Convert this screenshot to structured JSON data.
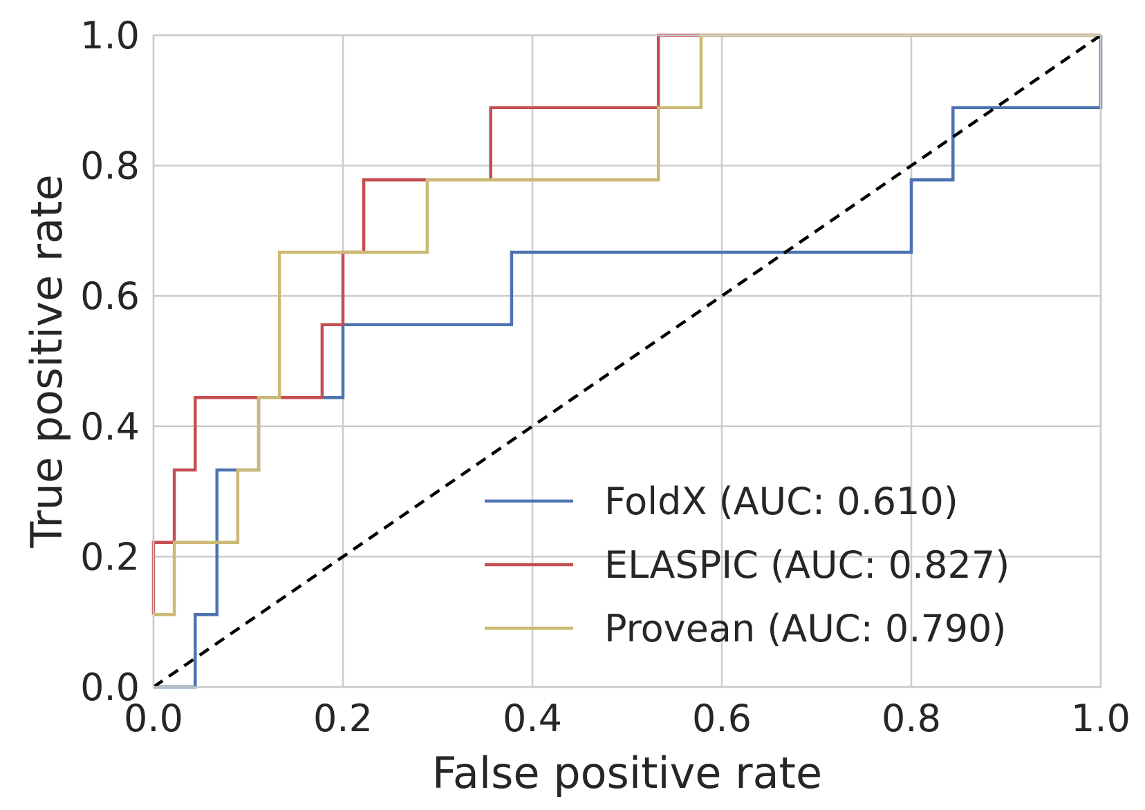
{
  "chart_data": {
    "type": "line",
    "title": "",
    "xlabel": "False positive rate",
    "ylabel": "True positive rate",
    "xlim": [
      0.0,
      1.0
    ],
    "ylim": [
      0.0,
      1.0
    ],
    "xticks": [
      "0.0",
      "0.2",
      "0.4",
      "0.6",
      "0.8",
      "1.0"
    ],
    "yticks": [
      "0.0",
      "0.2",
      "0.4",
      "0.6",
      "0.8",
      "1.0"
    ],
    "grid": true,
    "legend_position": "lower-right",
    "series": [
      {
        "name": "FoldX (AUC: 0.610)",
        "color": "#4c72b0",
        "x": [
          0.0,
          0.044,
          0.044,
          0.067,
          0.067,
          0.089,
          0.089,
          0.111,
          0.111,
          0.2,
          0.2,
          0.378,
          0.378,
          0.8,
          0.8,
          0.844,
          0.844,
          1.0,
          1.0
        ],
        "y": [
          0.0,
          0.0,
          0.111,
          0.111,
          0.333,
          0.333,
          0.333,
          0.333,
          0.444,
          0.444,
          0.556,
          0.556,
          0.667,
          0.667,
          0.778,
          0.778,
          0.889,
          0.889,
          1.0
        ]
      },
      {
        "name": "ELASPIC (AUC: 0.827)",
        "color": "#c44e52",
        "x": [
          0.0,
          0.0,
          0.022,
          0.022,
          0.044,
          0.044,
          0.178,
          0.178,
          0.2,
          0.2,
          0.222,
          0.222,
          0.356,
          0.356,
          0.533,
          0.533,
          1.0
        ],
        "y": [
          0.111,
          0.222,
          0.222,
          0.333,
          0.333,
          0.444,
          0.444,
          0.556,
          0.556,
          0.667,
          0.667,
          0.778,
          0.778,
          0.889,
          0.889,
          1.0,
          1.0
        ]
      },
      {
        "name": "Provean (AUC: 0.790)",
        "color": "#ccb974",
        "x": [
          0.0,
          0.022,
          0.022,
          0.089,
          0.089,
          0.111,
          0.111,
          0.133,
          0.133,
          0.289,
          0.289,
          0.533,
          0.533,
          0.578,
          0.578,
          1.0
        ],
        "y": [
          0.111,
          0.111,
          0.222,
          0.222,
          0.333,
          0.333,
          0.444,
          0.444,
          0.667,
          0.667,
          0.778,
          0.778,
          0.889,
          0.889,
          1.0,
          1.0
        ]
      }
    ],
    "reference_line": {
      "style": "dashed",
      "color": "#000000",
      "x": [
        0.0,
        1.0
      ],
      "y": [
        0.0,
        1.0
      ]
    }
  }
}
